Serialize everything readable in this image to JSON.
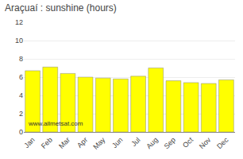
{
  "chart_data": {
    "type": "bar",
    "title": "Araçuaí : sunshine (hours)",
    "categories": [
      "Jan",
      "Feb",
      "Mar",
      "Apr",
      "May",
      "Jun",
      "Jul",
      "Aug",
      "Sep",
      "Oct",
      "Nov",
      "Dec"
    ],
    "values": [
      6.7,
      7.1,
      6.4,
      6.0,
      5.9,
      5.8,
      6.1,
      7.0,
      5.6,
      5.4,
      5.3,
      5.7
    ],
    "color": "#ffff00",
    "ylim": [
      0,
      12
    ],
    "yticks": [
      0,
      2,
      4,
      6,
      8,
      10,
      12
    ],
    "grid": true,
    "annotations": [
      "www.allmetsat.com"
    ]
  }
}
